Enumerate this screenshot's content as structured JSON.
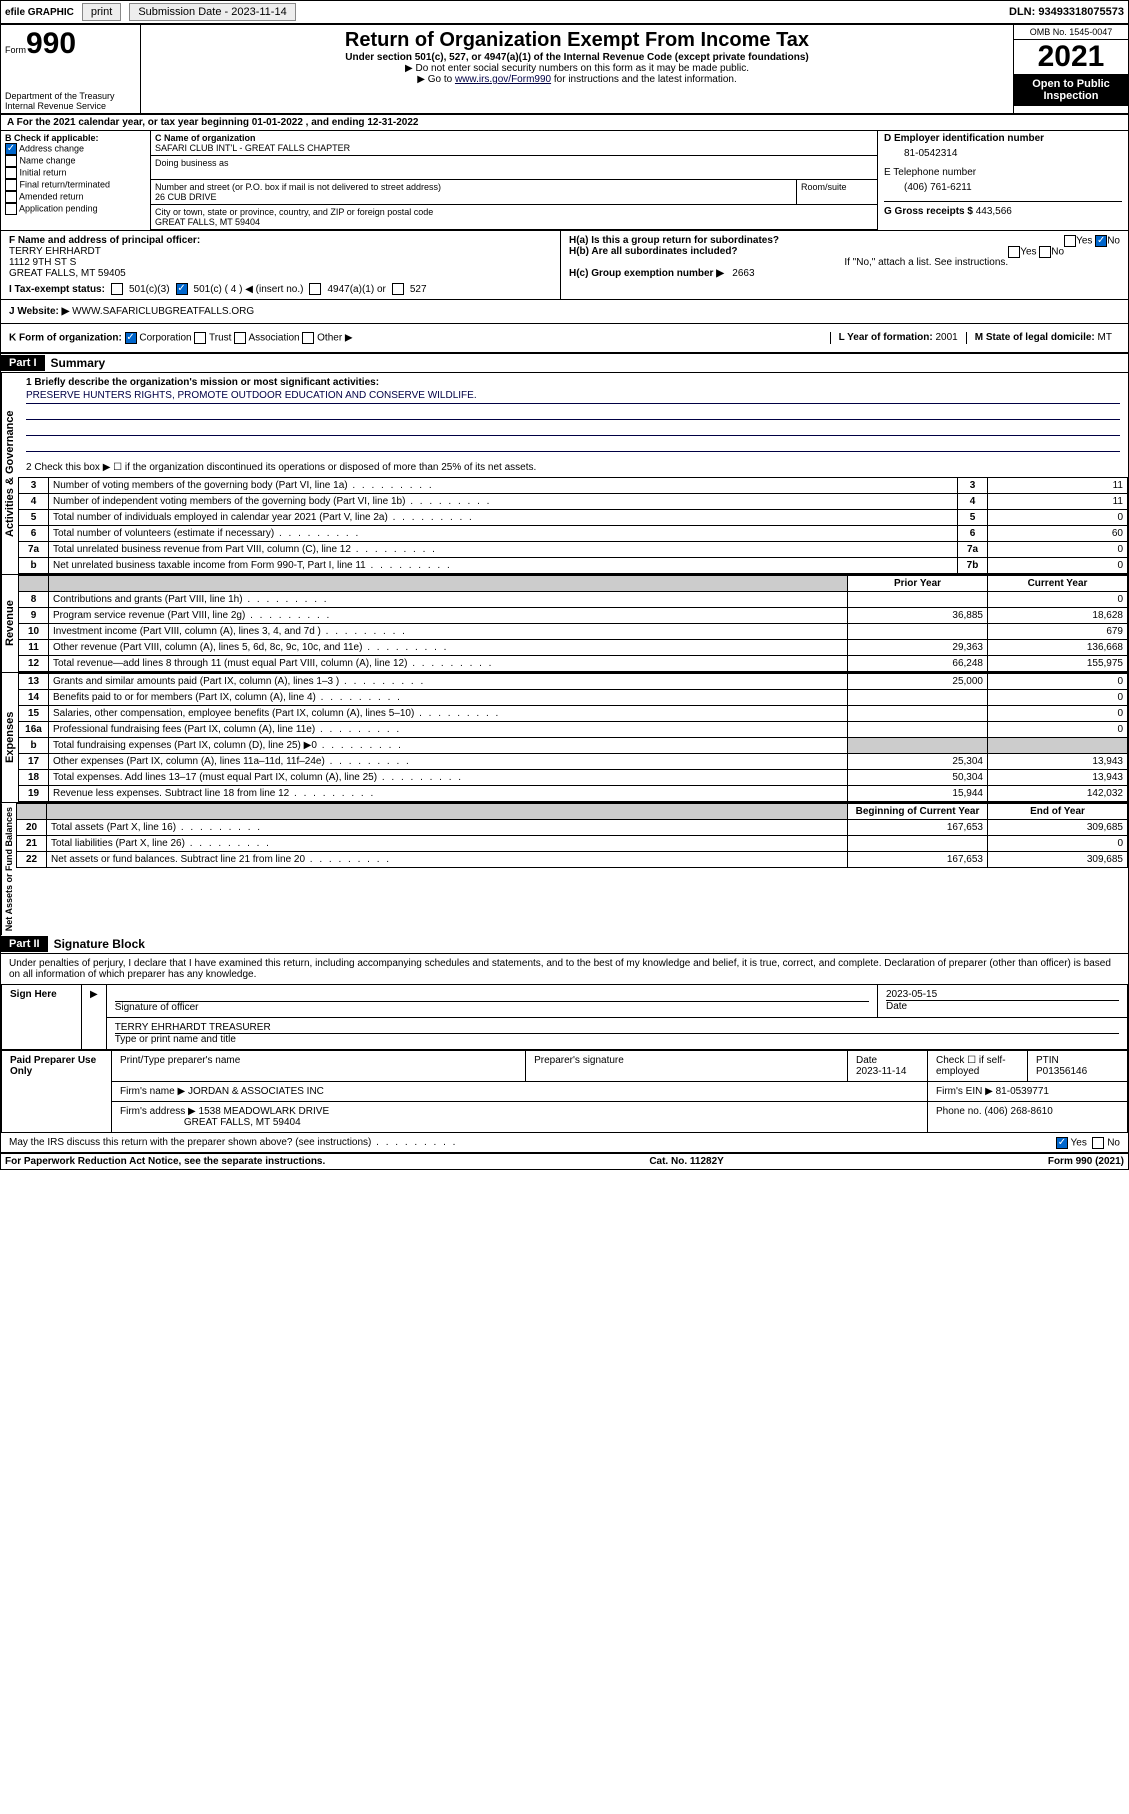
{
  "topbar": {
    "efile": "efile GRAPHIC",
    "print": "print",
    "submission_label": "Submission Date - 2023-11-14",
    "dln": "DLN: 93493318075573"
  },
  "header": {
    "form_label": "Form",
    "form_number": "990",
    "dept": "Department of the Treasury\nInternal Revenue Service",
    "title": "Return of Organization Exempt From Income Tax",
    "subtitle": "Under section 501(c), 527, or 4947(a)(1) of the Internal Revenue Code (except private foundations)",
    "note1": "▶ Do not enter social security numbers on this form as it may be made public.",
    "note2_pre": "▶ Go to ",
    "note2_link": "www.irs.gov/Form990",
    "note2_post": " for instructions and the latest information.",
    "omb": "OMB No. 1545-0047",
    "year": "2021",
    "inspection": "Open to Public Inspection"
  },
  "row_a": "A For the 2021 calendar year, or tax year beginning 01-01-2022   , and ending 12-31-2022",
  "block_b": {
    "label": "B Check if applicable:",
    "opts": [
      "Address change",
      "Name change",
      "Initial return",
      "Final return/terminated",
      "Amended return",
      "Application pending"
    ],
    "checked": [
      true,
      false,
      false,
      false,
      false,
      false
    ]
  },
  "block_c": {
    "name_label": "C Name of organization",
    "name": "SAFARI CLUB INT'L - GREAT FALLS CHAPTER",
    "dba_label": "Doing business as",
    "addr_label": "Number and street (or P.O. box if mail is not delivered to street address)",
    "room_label": "Room/suite",
    "addr": "26 CUB DRIVE",
    "city_label": "City or town, state or province, country, and ZIP or foreign postal code",
    "city": "GREAT FALLS, MT  59404"
  },
  "block_d": {
    "label": "D Employer identification number",
    "val": "81-0542314"
  },
  "block_e": {
    "label": "E Telephone number",
    "val": "(406) 761-6211"
  },
  "block_g": {
    "label": "G Gross receipts $",
    "val": "443,566"
  },
  "block_f": {
    "label": "F  Name and address of principal officer:",
    "name": "TERRY EHRHARDT",
    "addr1": "1112 9TH ST S",
    "addr2": "GREAT FALLS, MT  59405"
  },
  "block_h": {
    "a": "H(a)  Is this a group return for subordinates?",
    "a_yes": "Yes",
    "a_no": "No",
    "b": "H(b)  Are all subordinates included?",
    "b_yes": "Yes",
    "b_no": "No",
    "b_note": "If \"No,\" attach a list. See instructions.",
    "c": "H(c)  Group exemption number ▶",
    "c_val": "2663"
  },
  "row_i": {
    "label": "I   Tax-exempt status:",
    "c3": "501(c)(3)",
    "c_insert": "501(c) ( 4 ) ◀ (insert no.)",
    "a1": "4947(a)(1) or",
    "s527": "527"
  },
  "row_j": {
    "label": "J   Website: ▶",
    "val": "WWW.SAFARICLUBGREATFALLS.ORG"
  },
  "row_k": {
    "label": "K Form of organization:",
    "opts": [
      "Corporation",
      "Trust",
      "Association",
      "Other ▶"
    ],
    "l_label": "L Year of formation:",
    "l_val": "2001",
    "m_label": "M State of legal domicile:",
    "m_val": "MT"
  },
  "part1": {
    "header": "Part I",
    "title": "Summary"
  },
  "mission": {
    "q": "1  Briefly describe the organization's mission or most significant activities:",
    "a": "PRESERVE HUNTERS RIGHTS, PROMOTE OUTDOOR EDUCATION AND CONSERVE WILDLIFE."
  },
  "line2": "2   Check this box ▶ ☐  if the organization discontinued its operations or disposed of more than 25% of its net assets.",
  "sections": {
    "gov": "Activities & Governance",
    "rev": "Revenue",
    "exp": "Expenses",
    "net": "Net Assets or Fund Balances"
  },
  "lines_single": [
    {
      "n": "3",
      "d": "Number of voting members of the governing body (Part VI, line 1a)",
      "sn": "3",
      "v": "11"
    },
    {
      "n": "4",
      "d": "Number of independent voting members of the governing body (Part VI, line 1b)",
      "sn": "4",
      "v": "11"
    },
    {
      "n": "5",
      "d": "Total number of individuals employed in calendar year 2021 (Part V, line 2a)",
      "sn": "5",
      "v": "0"
    },
    {
      "n": "6",
      "d": "Total number of volunteers (estimate if necessary)",
      "sn": "6",
      "v": "60"
    },
    {
      "n": "7a",
      "d": "Total unrelated business revenue from Part VIII, column (C), line 12",
      "sn": "7a",
      "v": "0"
    },
    {
      "n": "b",
      "d": "Net unrelated business taxable income from Form 990-T, Part I, line 11",
      "sn": "7b",
      "v": "0"
    }
  ],
  "col_headers": {
    "prior": "Prior Year",
    "current": "Current Year"
  },
  "lines_rev": [
    {
      "n": "8",
      "d": "Contributions and grants (Part VIII, line 1h)",
      "p": "",
      "c": "0"
    },
    {
      "n": "9",
      "d": "Program service revenue (Part VIII, line 2g)",
      "p": "36,885",
      "c": "18,628"
    },
    {
      "n": "10",
      "d": "Investment income (Part VIII, column (A), lines 3, 4, and 7d )",
      "p": "",
      "c": "679"
    },
    {
      "n": "11",
      "d": "Other revenue (Part VIII, column (A), lines 5, 6d, 8c, 9c, 10c, and 11e)",
      "p": "29,363",
      "c": "136,668"
    },
    {
      "n": "12",
      "d": "Total revenue—add lines 8 through 11 (must equal Part VIII, column (A), line 12)",
      "p": "66,248",
      "c": "155,975"
    }
  ],
  "lines_exp": [
    {
      "n": "13",
      "d": "Grants and similar amounts paid (Part IX, column (A), lines 1–3 )",
      "p": "25,000",
      "c": "0"
    },
    {
      "n": "14",
      "d": "Benefits paid to or for members (Part IX, column (A), line 4)",
      "p": "",
      "c": "0"
    },
    {
      "n": "15",
      "d": "Salaries, other compensation, employee benefits (Part IX, column (A), lines 5–10)",
      "p": "",
      "c": "0"
    },
    {
      "n": "16a",
      "d": "Professional fundraising fees (Part IX, column (A), line 11e)",
      "p": "",
      "c": "0"
    },
    {
      "n": "b",
      "d": "Total fundraising expenses (Part IX, column (D), line 25) ▶0",
      "p": "shaded",
      "c": "shaded"
    },
    {
      "n": "17",
      "d": "Other expenses (Part IX, column (A), lines 11a–11d, 11f–24e)",
      "p": "25,304",
      "c": "13,943"
    },
    {
      "n": "18",
      "d": "Total expenses. Add lines 13–17 (must equal Part IX, column (A), line 25)",
      "p": "50,304",
      "c": "13,943"
    },
    {
      "n": "19",
      "d": "Revenue less expenses. Subtract line 18 from line 12",
      "p": "15,944",
      "c": "142,032"
    }
  ],
  "net_headers": {
    "begin": "Beginning of Current Year",
    "end": "End of Year"
  },
  "lines_net": [
    {
      "n": "20",
      "d": "Total assets (Part X, line 16)",
      "p": "167,653",
      "c": "309,685"
    },
    {
      "n": "21",
      "d": "Total liabilities (Part X, line 26)",
      "p": "",
      "c": "0"
    },
    {
      "n": "22",
      "d": "Net assets or fund balances. Subtract line 21 from line 20",
      "p": "167,653",
      "c": "309,685"
    }
  ],
  "part2": {
    "header": "Part II",
    "title": "Signature Block"
  },
  "penalties": "Under penalties of perjury, I declare that I have examined this return, including accompanying schedules and statements, and to the best of my knowledge and belief, it is true, correct, and complete. Declaration of preparer (other than officer) is based on all information of which preparer has any knowledge.",
  "sign": {
    "here": "Sign Here",
    "sig_label": "Signature of officer",
    "date_label": "Date",
    "date": "2023-05-15",
    "name": "TERRY EHRHARDT  TREASURER",
    "name_label": "Type or print name and title"
  },
  "paid": {
    "title": "Paid Preparer Use Only",
    "col1": "Print/Type preparer's name",
    "col2": "Preparer's signature",
    "col3": "Date",
    "date": "2023-11-14",
    "col4_pre": "Check ☐ if self-employed",
    "col5": "PTIN",
    "ptin": "P01356146",
    "firm_label": "Firm's name    ▶",
    "firm": "JORDAN & ASSOCIATES INC",
    "ein_label": "Firm's EIN ▶",
    "ein": "81-0539771",
    "addr_label": "Firm's address ▶",
    "addr1": "1538 MEADOWLARK DRIVE",
    "addr2": "GREAT FALLS, MT  59404",
    "phone_label": "Phone no.",
    "phone": "(406) 268-8610"
  },
  "discuss": {
    "q": "May the IRS discuss this return with the preparer shown above? (see instructions)",
    "yes": "Yes",
    "no": "No"
  },
  "footer": {
    "left": "For Paperwork Reduction Act Notice, see the separate instructions.",
    "mid": "Cat. No. 11282Y",
    "right": "Form 990 (2021)"
  }
}
